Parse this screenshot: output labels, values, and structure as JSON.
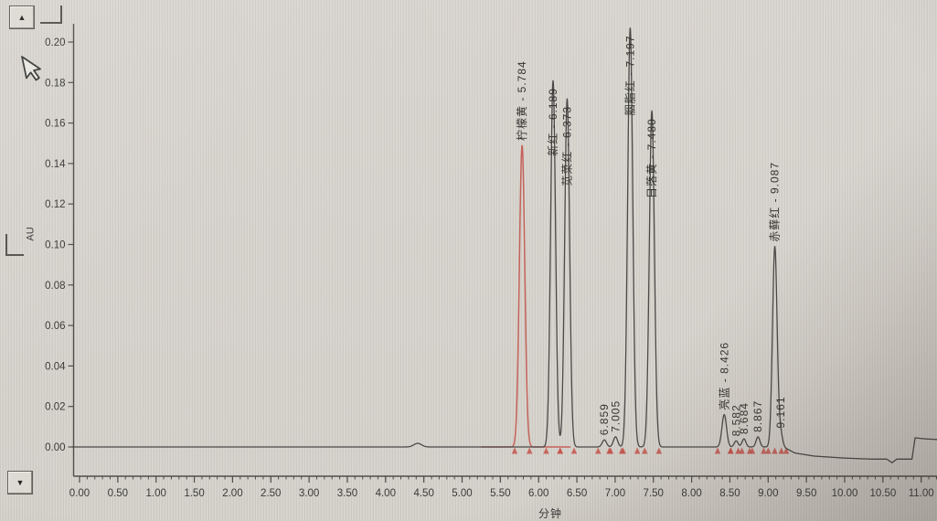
{
  "window": {
    "scroll_up_glyph": "▲",
    "scroll_down_glyph": "▼"
  },
  "chart_data": {
    "type": "line",
    "title": "",
    "xlabel": "分钟",
    "ylabel": "AU",
    "xlim": [
      0,
      11.0
    ],
    "ylim": [
      -0.01,
      0.208
    ],
    "grid": false,
    "legend": false,
    "x_tick_labels": [
      "0.00",
      "0.50",
      "1.00",
      "1.50",
      "2.00",
      "2.50",
      "3.00",
      "3.50",
      "4.00",
      "4.50",
      "5.00",
      "5.50",
      "6.00",
      "6.50",
      "7.00",
      "7.50",
      "8.00",
      "8.50",
      "9.00",
      "9.50",
      "10.00",
      "10.50",
      "11.00"
    ],
    "x_major_tick_step": 0.5,
    "x_minor_tick_step": 0.1,
    "y_tick_labels": [
      "0.00",
      "0.02",
      "0.04",
      "0.06",
      "0.08",
      "0.10",
      "0.12",
      "0.14",
      "0.16",
      "0.18",
      "0.20"
    ],
    "y_tick_step": 0.02,
    "trace_color": "#4b4a47",
    "red_trace_color": "#c4635a",
    "integration_marker_color": "#c4544c",
    "series": [
      {
        "name": "channel-red",
        "color": "#c4635a",
        "draw_range": [
          5.25,
          6.42
        ],
        "peaks": [
          {
            "compound": "柠檬黄",
            "rt": 5.784,
            "height": 0.149,
            "sigma": 0.035,
            "label": "柠檬黄 - 5.784"
          }
        ]
      },
      {
        "name": "channel-main",
        "color": "#4b4a47",
        "draw_range": [
          -0.1,
          11.3
        ],
        "peaks": [
          {
            "compound": "",
            "rt": 4.42,
            "height": 0.0018,
            "sigma": 0.05,
            "label": ""
          },
          {
            "compound": "新红",
            "rt": 6.189,
            "height": 0.181,
            "sigma": 0.032,
            "label": "新红 - 6.189"
          },
          {
            "compound": "苋菜红",
            "rt": 6.373,
            "height": 0.172,
            "sigma": 0.032,
            "label": "苋菜红 - 6.373"
          },
          {
            "compound": "",
            "rt": 6.859,
            "height": 0.0035,
            "sigma": 0.028,
            "label": "6.859"
          },
          {
            "compound": "",
            "rt": 7.005,
            "height": 0.005,
            "sigma": 0.028,
            "label": "7.005"
          },
          {
            "compound": "胭脂红",
            "rt": 7.197,
            "height": 0.207,
            "sigma": 0.033,
            "label": "胭脂红 - 7.197"
          },
          {
            "compound": "日落黄",
            "rt": 7.48,
            "height": 0.166,
            "sigma": 0.033,
            "label": "日落黄 - 7.480"
          },
          {
            "compound": "亮蓝",
            "rt": 8.426,
            "height": 0.016,
            "sigma": 0.03,
            "label": "亮蓝 - 8.426"
          },
          {
            "compound": "",
            "rt": 8.582,
            "height": 0.003,
            "sigma": 0.025,
            "label": "8.582"
          },
          {
            "compound": "",
            "rt": 8.684,
            "height": 0.004,
            "sigma": 0.025,
            "label": "8.684"
          },
          {
            "compound": "",
            "rt": 8.867,
            "height": 0.005,
            "sigma": 0.025,
            "label": "8.867"
          },
          {
            "compound": "赤藓红",
            "rt": 9.087,
            "height": 0.099,
            "sigma": 0.03,
            "label": "赤藓红 - 9.087"
          },
          {
            "compound": "",
            "rt": 9.161,
            "height": 0.007,
            "sigma": 0.025,
            "label": "9.161"
          }
        ]
      }
    ],
    "baseline_points": [
      [
        0,
        0
      ],
      [
        9.2,
        0
      ],
      [
        9.35,
        -0.003
      ],
      [
        9.6,
        -0.0045
      ],
      [
        10.0,
        -0.0055
      ],
      [
        10.35,
        -0.006
      ],
      [
        10.55,
        -0.006
      ],
      [
        10.62,
        -0.0078
      ],
      [
        10.68,
        -0.006
      ],
      [
        10.88,
        -0.006
      ],
      [
        10.92,
        0.0045
      ],
      [
        11.05,
        0.004
      ],
      [
        11.3,
        0.0035
      ]
    ]
  }
}
